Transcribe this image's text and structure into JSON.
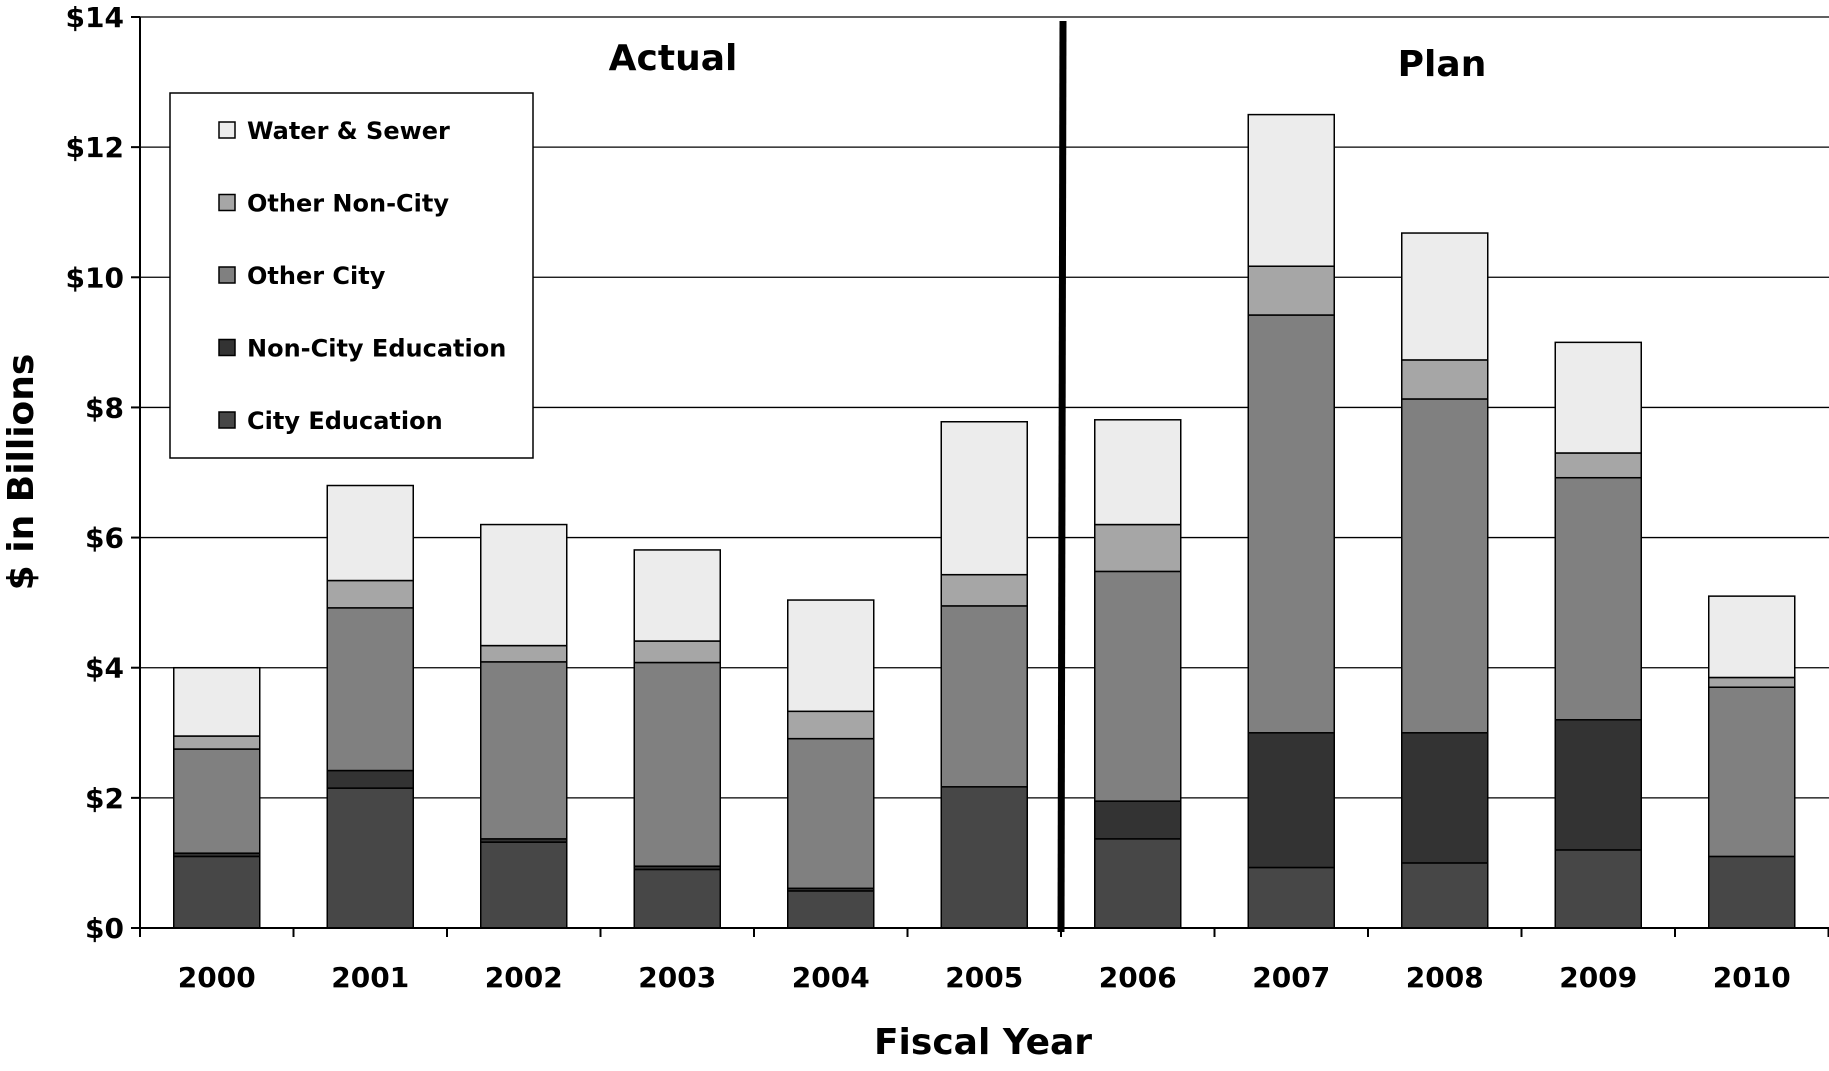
{
  "chart_data": {
    "type": "bar",
    "stacked": true,
    "categories": [
      "2000",
      "2001",
      "2002",
      "2003",
      "2004",
      "2005",
      "2006",
      "2007",
      "2008",
      "2009",
      "2010"
    ],
    "series": [
      {
        "name": "City Education",
        "color": "#474747",
        "values": [
          1.1,
          2.15,
          1.32,
          0.9,
          0.57,
          2.17,
          1.37,
          0.93,
          1.0,
          1.2,
          1.1
        ]
      },
      {
        "name": "Non-City Education",
        "color": "#333333",
        "values": [
          0.05,
          0.27,
          0.05,
          0.05,
          0.04,
          0.0,
          0.58,
          2.07,
          2.0,
          2.0,
          0.0
        ]
      },
      {
        "name": "Other City",
        "color": "#808080",
        "values": [
          1.6,
          2.5,
          2.72,
          3.13,
          2.3,
          2.78,
          3.53,
          6.42,
          5.13,
          3.72,
          2.6
        ]
      },
      {
        "name": "Other Non-City",
        "color": "#a6a6a6",
        "values": [
          0.2,
          0.42,
          0.25,
          0.33,
          0.42,
          0.48,
          0.72,
          0.75,
          0.6,
          0.38,
          0.15
        ]
      },
      {
        "name": "Water & Sewer",
        "color": "#ececec",
        "values": [
          1.05,
          1.46,
          1.86,
          1.4,
          1.71,
          2.35,
          1.61,
          2.33,
          1.95,
          1.7,
          1.25
        ]
      }
    ],
    "ylim": [
      0,
      14
    ],
    "yticks": [
      0,
      2,
      4,
      6,
      8,
      10,
      12,
      14
    ],
    "ytick_labels": [
      "$0",
      "$2",
      "$4",
      "$6",
      "$8",
      "$10",
      "$12",
      "$14"
    ],
    "xlabel": "Fiscal Year",
    "ylabel": "$ in Billions",
    "grid": true,
    "legend": {
      "placement": "top-left",
      "order": [
        "Water & Sewer",
        "Other Non-City",
        "Other City",
        "Non-City Education",
        "City Education"
      ]
    },
    "sections": [
      {
        "label": "Actual",
        "categories": [
          "2000",
          "2001",
          "2002",
          "2003",
          "2004",
          "2005"
        ]
      },
      {
        "label": "Plan",
        "categories": [
          "2006",
          "2007",
          "2008",
          "2009",
          "2010"
        ]
      }
    ]
  }
}
